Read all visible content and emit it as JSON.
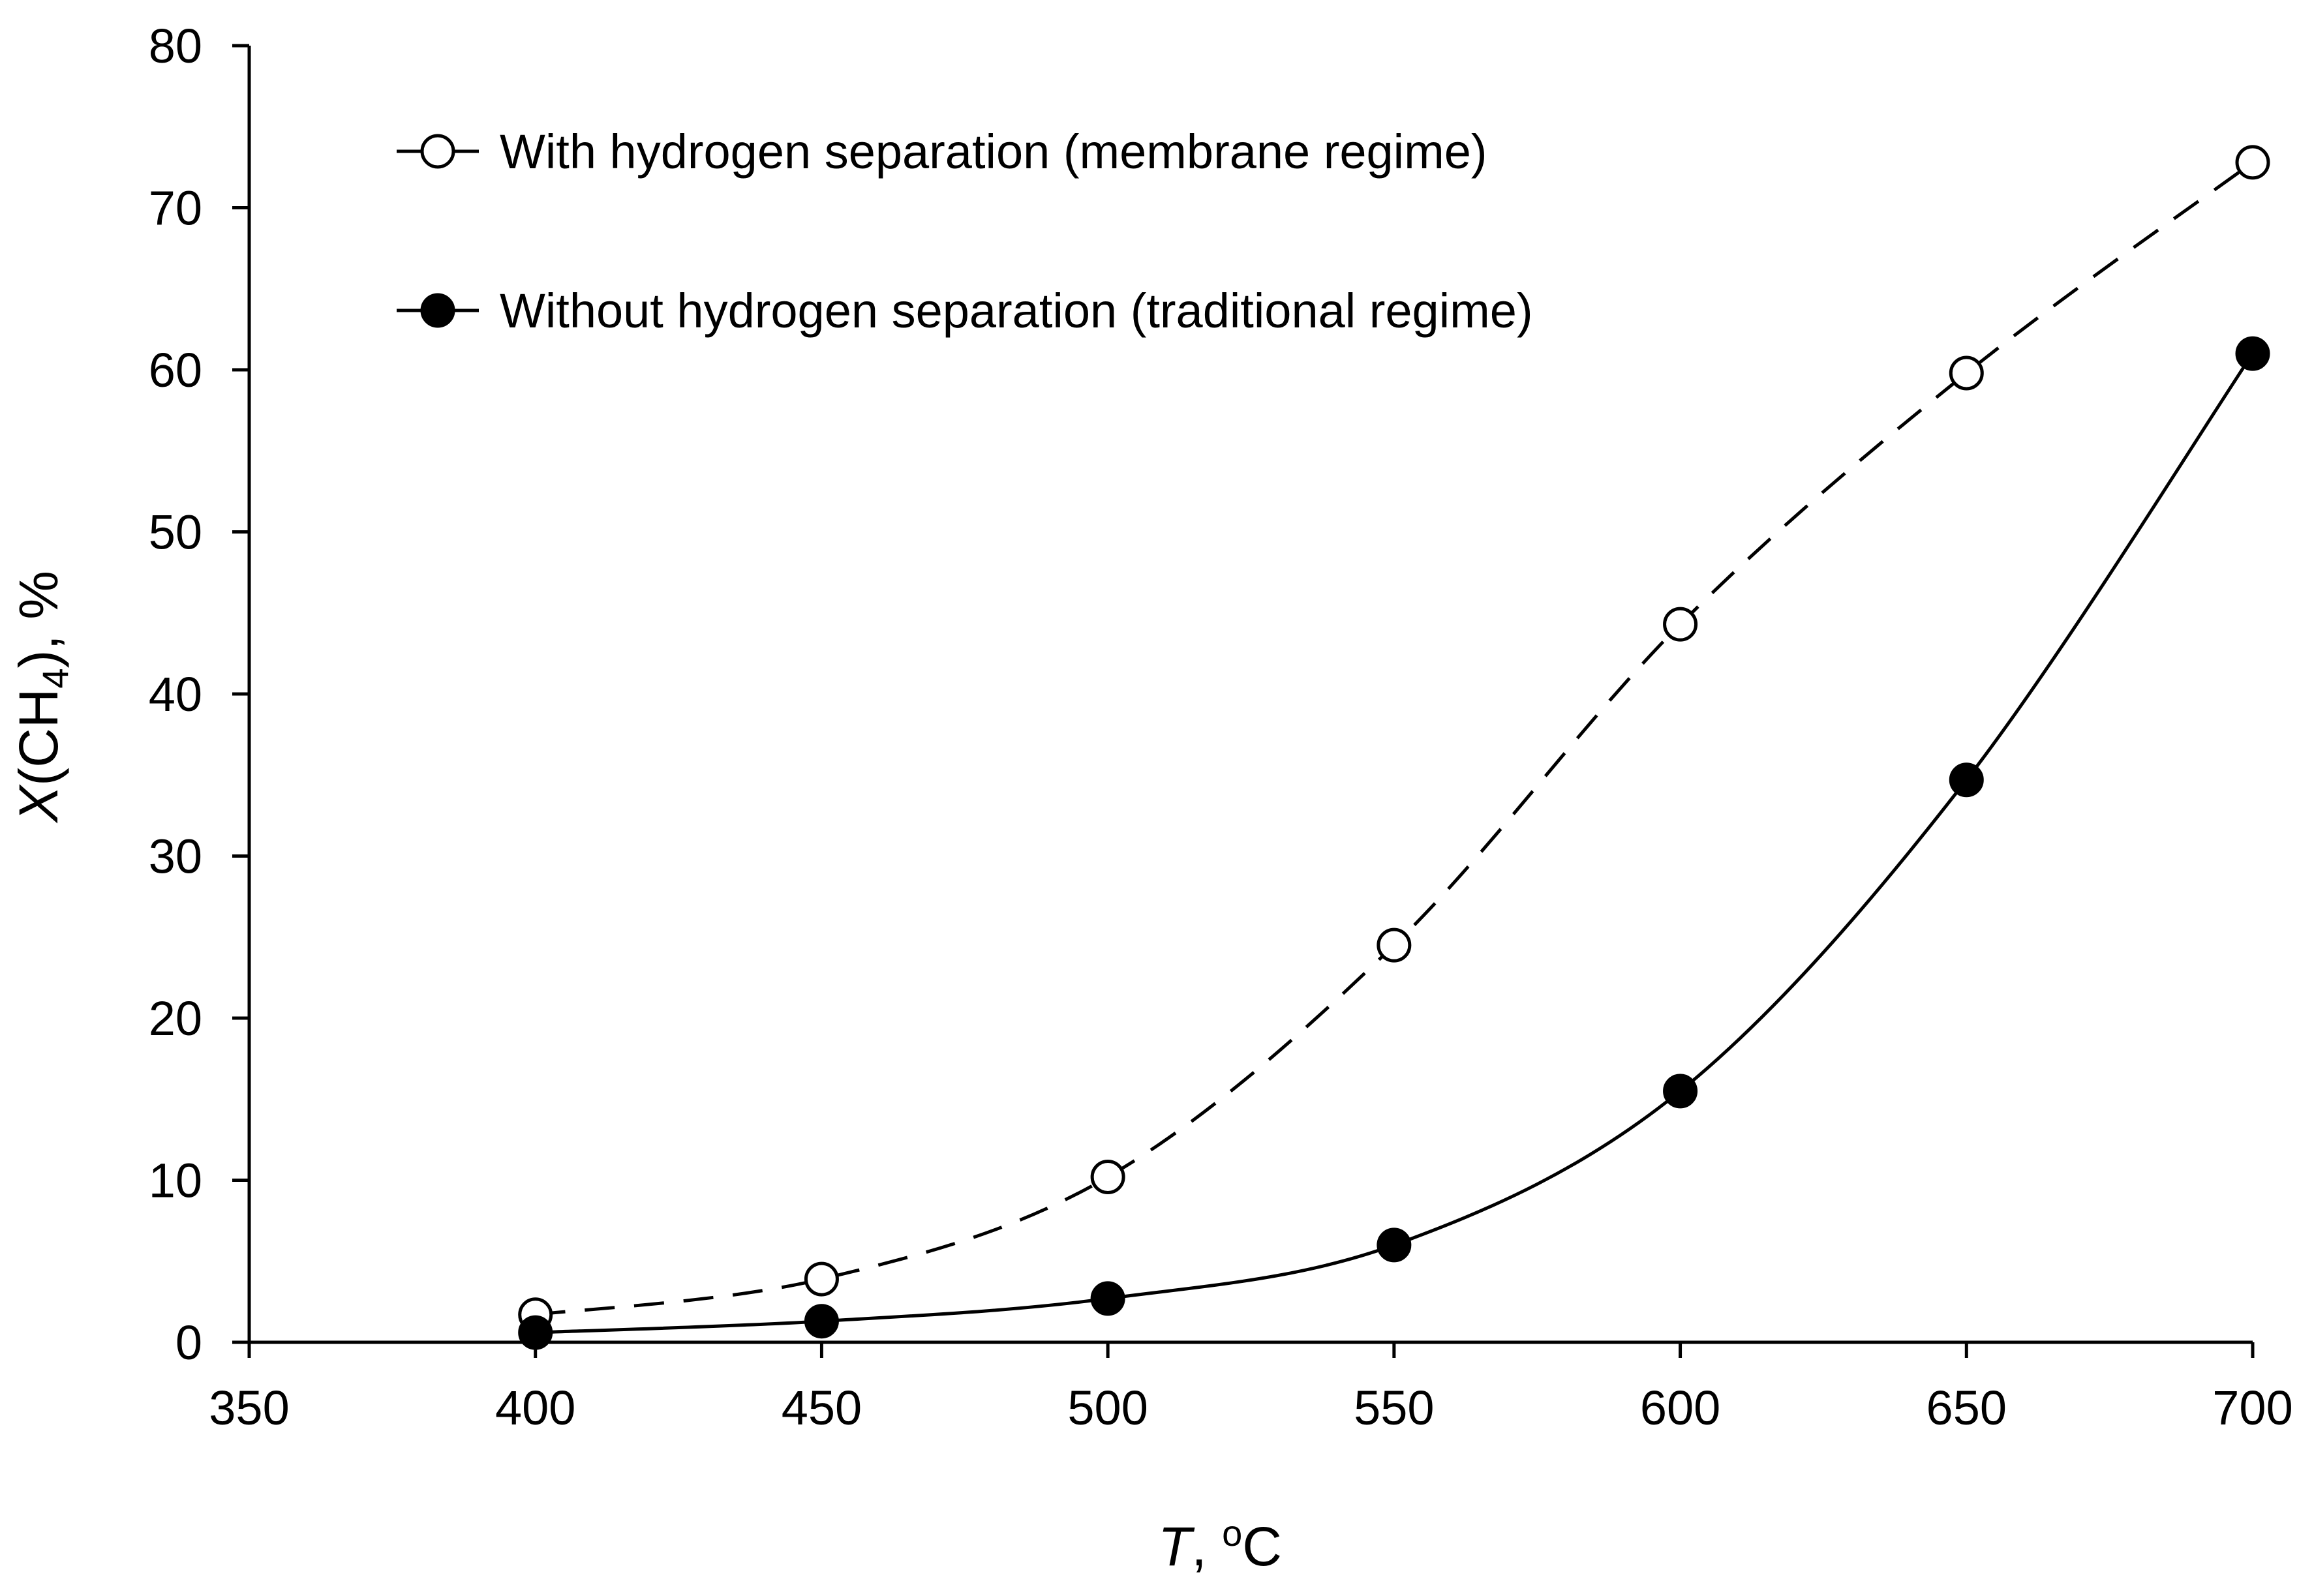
{
  "chart_data": {
    "type": "line",
    "title": "",
    "xlabel": {
      "var": "T",
      "sep": ", ",
      "sup": "o",
      "unit": "C"
    },
    "ylabel": {
      "var": "X",
      "open": "(CH",
      "sub": "4",
      "close": "), %"
    },
    "xlim": [
      350,
      700
    ],
    "ylim": [
      0,
      80
    ],
    "xticks": [
      "350",
      "400",
      "450",
      "500",
      "550",
      "600",
      "650",
      "700"
    ],
    "yticks": [
      "0",
      "10",
      "20",
      "30",
      "40",
      "50",
      "60",
      "70",
      "80"
    ],
    "legend_position": "top-left",
    "grid": false,
    "x": [
      400,
      450,
      500,
      550,
      600,
      650,
      700
    ],
    "series": [
      {
        "name": "With hydrogen separation (membrane regime)",
        "marker": "open-circle",
        "line": "dashed",
        "values": [
          1.7,
          3.9,
          10.2,
          24.5,
          44.3,
          59.8,
          72.8
        ]
      },
      {
        "name": "Without hydrogen separation (traditional regime)",
        "marker": "filled-circle",
        "line": "solid",
        "values": [
          0.6,
          1.3,
          2.7,
          6.0,
          15.5,
          34.7,
          61.0
        ]
      }
    ]
  }
}
